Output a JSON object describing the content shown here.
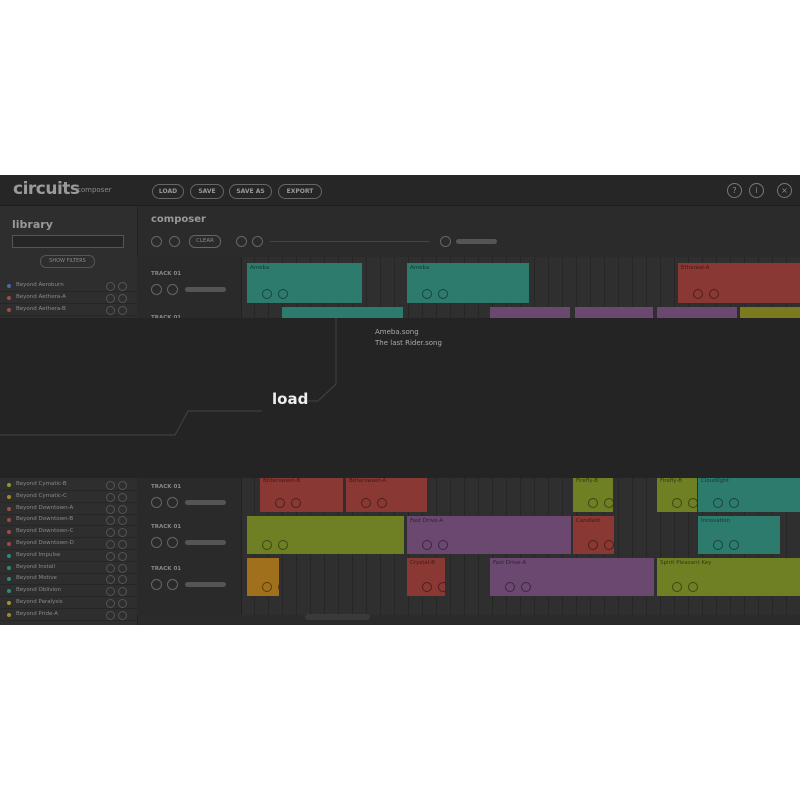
{
  "header": {
    "logo": "circuits",
    "subtitle": "composer",
    "buttons": [
      "LOAD",
      "SAVE",
      "SAVE AS",
      "EXPORT"
    ],
    "icons": [
      "?",
      "i",
      "×"
    ]
  },
  "library": {
    "title": "library",
    "filter_button": "SHOW FILTERS",
    "items": [
      "Beyond Aeroburn",
      "Beyond Aethera-A",
      "Beyond Aethera-B",
      "Beyond Cymatic-B",
      "Beyond Cymatic-C",
      "Beyond Downtown-A",
      "Beyond Downtown-B",
      "Beyond Downtown-C",
      "Beyond Downtown-D",
      "Beyond Impulse",
      "Beyond Install",
      "Beyond Motive",
      "Beyond Oblivion",
      "Beyond Paralysis",
      "Beyond Pride-A"
    ]
  },
  "composer": {
    "title": "composer",
    "clear_button": "CLEAR",
    "tracks": [
      {
        "name": "TRACK 01",
        "clips": [
          {
            "label": "Ameba",
            "color": "#2d7b6c"
          },
          {
            "label": "Ameba",
            "color": "#2d7b6c"
          },
          {
            "label": "Ethereal-A",
            "color": "#8a3834"
          }
        ]
      },
      {
        "name": "TRACK 01",
        "clips": [
          {
            "label": null,
            "color": "#2d7b6c"
          },
          {
            "label": null,
            "color": "#6a4870"
          },
          {
            "label": null,
            "color": "#6a4870"
          },
          {
            "label": null,
            "color": "#6a4870"
          },
          {
            "label": null,
            "color": "#7c7a1e"
          }
        ]
      },
      {
        "name": "TRACK 01",
        "clips": [
          {
            "label": "Bittersweet-B",
            "color": "#8a3834"
          },
          {
            "label": "Bittersweet-A",
            "color": "#8a3834"
          },
          {
            "label": "Firefly-B",
            "color": "#6f7f24"
          },
          {
            "label": "Firefly-B",
            "color": "#6f7f24"
          },
          {
            "label": "Cloudlight",
            "color": "#2d7b6c"
          }
        ]
      },
      {
        "name": "TRACK 01",
        "clips": [
          {
            "label": null,
            "color": "#6f7f24"
          },
          {
            "label": "Fast Drive-A",
            "color": "#6a4870"
          },
          {
            "label": "Candlelit",
            "color": "#8a3834"
          },
          {
            "label": "Innovation",
            "color": "#2d7b6c"
          }
        ]
      },
      {
        "name": "TRACK 01",
        "clips": [
          {
            "label": null,
            "color": "#a0701c"
          },
          {
            "label": "Crystal-B",
            "color": "#8a3834"
          },
          {
            "label": "Fast Drive-A",
            "color": "#6a4870"
          },
          {
            "label": "Spirit Pleasant Key",
            "color": "#6f7f24"
          }
        ]
      }
    ]
  },
  "load_dialog": {
    "title": "load",
    "files": [
      "Ameba.song",
      "The last Rider.song"
    ]
  }
}
